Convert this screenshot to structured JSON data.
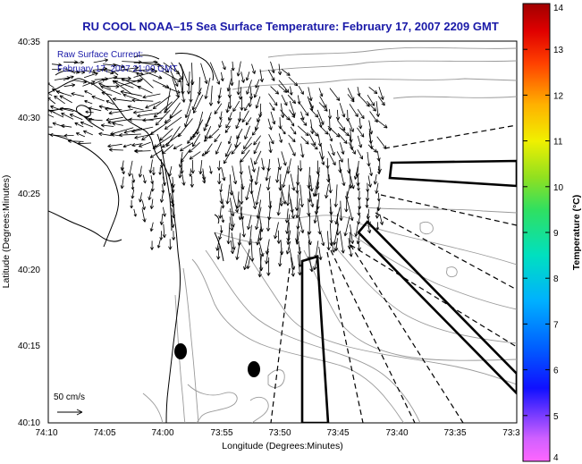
{
  "title": "RU COOL  NOAA–15  Sea Surface Temperature:  February 17, 2007 2209 GMT",
  "legend": {
    "line1": "Raw Surface Current:",
    "line2": "February 17, 2007 21:00 GMT",
    "scale_label": "50 cm/s"
  },
  "axes": {
    "xlabel": "Longitude (Degrees:Minutes)",
    "ylabel": "Latitude (Degrees:Minutes)",
    "x_ticks": [
      "74:10",
      "74:05",
      "74:00",
      "73:55",
      "73:50",
      "73:45",
      "73:40",
      "73:35",
      "73:3"
    ],
    "y_ticks": [
      "40:35",
      "40:30",
      "40:25",
      "40:20",
      "40:15",
      "40:10"
    ]
  },
  "colorbar": {
    "label": "Temperature (°C)",
    "ticks": [
      "14",
      "13",
      "12",
      "11",
      "10",
      "9",
      "8",
      "7",
      "6",
      "5",
      "4"
    ],
    "min": 4,
    "max": 14
  },
  "colors": {
    "title": "#1a1aa8",
    "land_outline": "#000000",
    "bathymetry": "#9a9a9a",
    "vectors": "#000000"
  }
}
